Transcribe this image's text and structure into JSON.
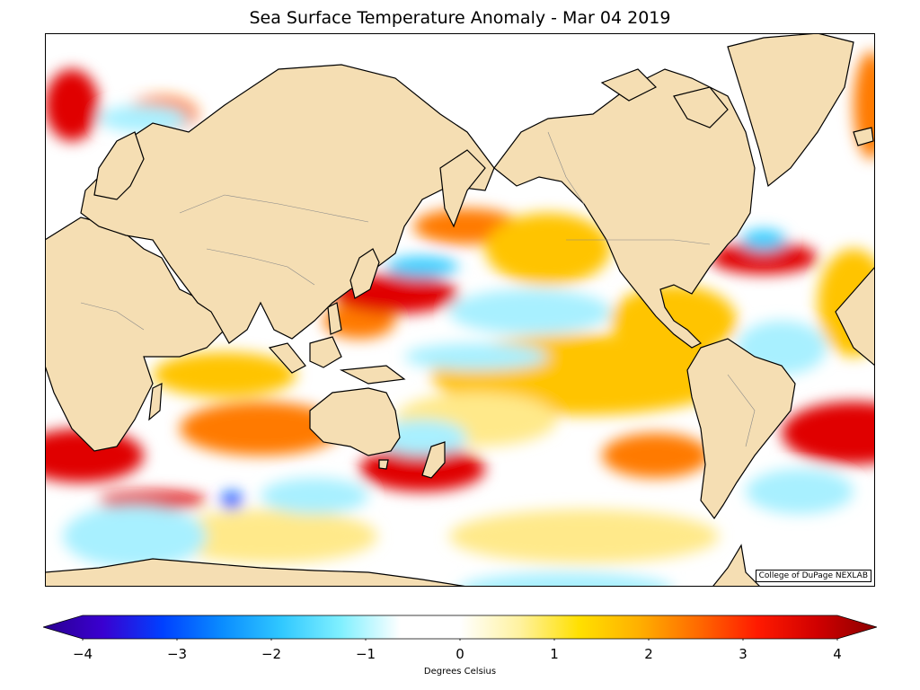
{
  "title": "Sea Surface Temperature Anomaly - Mar 04 2019",
  "credit": "College of DuPage NEXLAB",
  "colors": {
    "land": "#f5deb3",
    "coast": "#000000",
    "border": "#888888",
    "ocean_neutral": "#ffffff",
    "warm_1": "#ffe98a",
    "warm_2": "#ffc400",
    "warm_3": "#ff7a00",
    "hot": "#e00000",
    "extreme_hot": "#8b0000",
    "cool_1": "#a8f0ff",
    "cool_2": "#3ccfff",
    "cool_3": "#0a5cff",
    "extreme_cold": "#2a0090"
  },
  "colorbar": {
    "min": -4,
    "max": 4,
    "ticks": [
      "−4",
      "−3",
      "−2",
      "−1",
      "0",
      "1",
      "2",
      "3",
      "4"
    ],
    "label": "Degrees Celsius",
    "stops": [
      "#2a0090",
      "#3a00d0",
      "#0040ff",
      "#0a8cff",
      "#30c8ff",
      "#80f0ff",
      "#ffffff",
      "#ffffff",
      "#fff2a0",
      "#ffe000",
      "#ffb000",
      "#ff6a00",
      "#ff1a00",
      "#d00000",
      "#8b0000"
    ]
  }
}
